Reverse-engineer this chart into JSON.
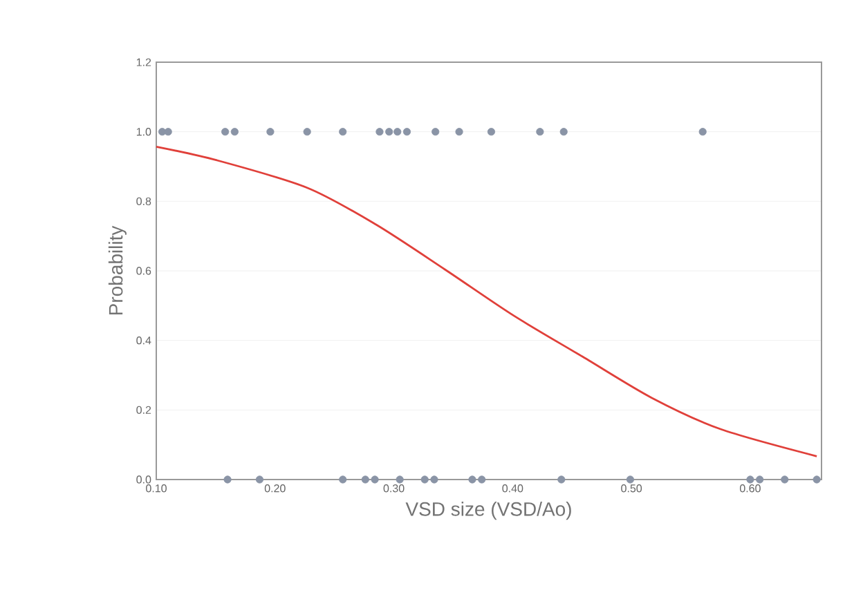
{
  "chart_data": {
    "type": "scatter",
    "xlabel": "VSD size (VSD/Ao)",
    "ylabel": "Probability",
    "xlim": [
      0.1,
      0.66
    ],
    "ylim": [
      0,
      1.2
    ],
    "xticks": [
      {
        "value": 0.1,
        "label": "0.10"
      },
      {
        "value": 0.2,
        "label": "0.20"
      },
      {
        "value": 0.3,
        "label": "0.30"
      },
      {
        "value": 0.4,
        "label": "0.40"
      },
      {
        "value": 0.5,
        "label": "0.50"
      },
      {
        "value": 0.6,
        "label": "0.60"
      }
    ],
    "yticks": [
      {
        "value": 0,
        "label": "0.0"
      },
      {
        "value": 0.2,
        "label": "0.2"
      },
      {
        "value": 0.4,
        "label": "0.4"
      },
      {
        "value": 0.6,
        "label": "0.6"
      },
      {
        "value": 0.8,
        "label": "0.8"
      },
      {
        "value": 1,
        "label": "1.0"
      },
      {
        "value": 1.2,
        "label": "1.2"
      }
    ],
    "grid": "y",
    "marker": "circle",
    "series": [
      {
        "color": "#8a94a6",
        "x": [
          0.105,
          0.11,
          0.158,
          0.166,
          0.196,
          0.227,
          0.257,
          0.288,
          0.296,
          0.303,
          0.311,
          0.335,
          0.355,
          0.382,
          0.423,
          0.443,
          0.56
        ],
        "values": [
          1,
          1,
          1,
          1,
          1,
          1,
          1,
          1,
          1,
          1,
          1,
          1,
          1,
          1,
          1,
          1,
          1
        ]
      },
      {
        "color": "#8a94a6",
        "x": [
          0.16,
          0.187,
          0.257,
          0.276,
          0.284,
          0.305,
          0.326,
          0.334,
          0.366,
          0.374,
          0.441,
          0.499,
          0.6,
          0.608,
          0.629,
          0.656
        ],
        "values": [
          0,
          0,
          0,
          0,
          0,
          0,
          0,
          0,
          0,
          0,
          0,
          0,
          0,
          0,
          0,
          0
        ]
      },
      {
        "type": "line",
        "color": "#e0403a",
        "marker": "none",
        "x": [
          0.1,
          0.151,
          0.227,
          0.285,
          0.343,
          0.401,
          0.459,
          0.517,
          0.575,
          0.656
        ],
        "values": [
          0.957,
          0.918,
          0.839,
          0.733,
          0.604,
          0.471,
          0.353,
          0.235,
          0.145,
          0.067
        ]
      }
    ]
  }
}
